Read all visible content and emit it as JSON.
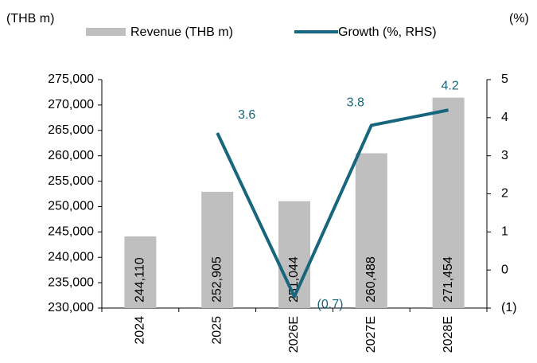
{
  "chart_data": {
    "type": "bar-line",
    "y_axis_label": "(THB m)",
    "y2_axis_label": "(%)",
    "legend": "top",
    "categories": [
      "2024",
      "2025",
      "2026E",
      "2027E",
      "2028E"
    ],
    "series": [
      {
        "name": "Revenue (THB m)",
        "type": "bar",
        "color": "#bfbfbf",
        "values": [
          244110,
          252905,
          251044,
          260488,
          271454
        ],
        "value_labels": [
          "244,110",
          "252,905",
          "251,044",
          "260,488",
          "271,454"
        ]
      },
      {
        "name": "Growth (%, RHS)",
        "type": "line",
        "axis": "y2",
        "color": "#17667d",
        "values": [
          null,
          3.6,
          -0.7,
          3.8,
          4.2
        ],
        "value_labels": [
          null,
          "3.6",
          "(0.7)",
          "3.8",
          "4.2"
        ]
      }
    ],
    "ylim": [
      230000,
      275000
    ],
    "yticks": [
      {
        "value": 230000,
        "label": "230,000"
      },
      {
        "value": 235000,
        "label": "235,000"
      },
      {
        "value": 240000,
        "label": "240,000"
      },
      {
        "value": 245000,
        "label": "245,000"
      },
      {
        "value": 250000,
        "label": "250,000"
      },
      {
        "value": 255000,
        "label": "255,000"
      },
      {
        "value": 260000,
        "label": "260,000"
      },
      {
        "value": 265000,
        "label": "265,000"
      },
      {
        "value": 270000,
        "label": "270,000"
      },
      {
        "value": 275000,
        "label": "275,000"
      }
    ],
    "y2lim": [
      -1,
      5
    ],
    "y2ticks": [
      {
        "value": -1,
        "label": "(1)"
      },
      0,
      1,
      2,
      3,
      4,
      5
    ],
    "grid": false
  }
}
